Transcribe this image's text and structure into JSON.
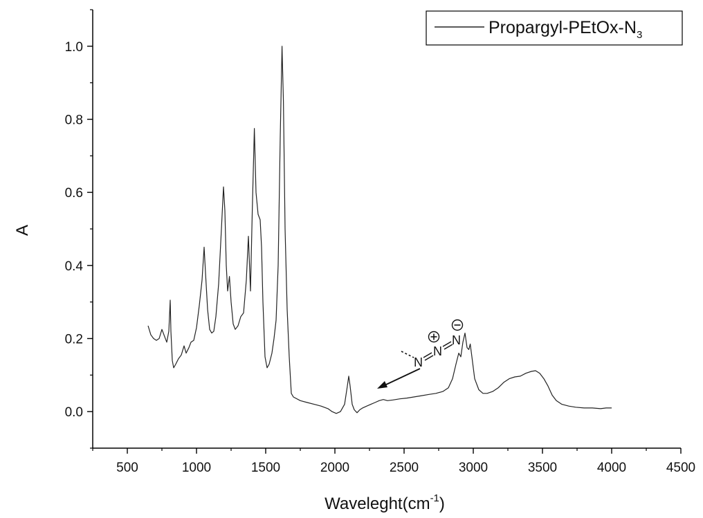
{
  "chart_data": {
    "type": "line",
    "title": "",
    "xlabel": "Waveleght(cm",
    "xlabel_sup": "-1",
    "xlabel_end": ")",
    "ylabel": "A",
    "xlim": [
      250,
      4500
    ],
    "ylim": [
      -0.1,
      1.1
    ],
    "xticks": [
      500,
      1000,
      1500,
      2000,
      2500,
      3000,
      3500,
      4000,
      4500
    ],
    "xtick_labels": [
      "500",
      "1000",
      "1500",
      "2000",
      "2500",
      "3000",
      "3500",
      "4000",
      "4500"
    ],
    "yticks": [
      0.0,
      0.2,
      0.4,
      0.6,
      0.8,
      1.0
    ],
    "ytick_labels": [
      "0.0",
      "0.2",
      "0.4",
      "0.6",
      "0.8",
      "1.0"
    ],
    "grid": false,
    "legend_position": "top-right",
    "series": [
      {
        "name": "Propargyl-PEtOx-N",
        "name_sub": "3",
        "color": "#222222",
        "points": [
          [
            650,
            0.235
          ],
          [
            670,
            0.21
          ],
          [
            690,
            0.2
          ],
          [
            710,
            0.195
          ],
          [
            730,
            0.2
          ],
          [
            750,
            0.225
          ],
          [
            770,
            0.205
          ],
          [
            785,
            0.19
          ],
          [
            800,
            0.22
          ],
          [
            810,
            0.305
          ],
          [
            815,
            0.22
          ],
          [
            825,
            0.14
          ],
          [
            835,
            0.12
          ],
          [
            850,
            0.13
          ],
          [
            870,
            0.145
          ],
          [
            890,
            0.155
          ],
          [
            910,
            0.18
          ],
          [
            925,
            0.16
          ],
          [
            945,
            0.175
          ],
          [
            960,
            0.19
          ],
          [
            980,
            0.195
          ],
          [
            1000,
            0.23
          ],
          [
            1020,
            0.29
          ],
          [
            1040,
            0.36
          ],
          [
            1055,
            0.45
          ],
          [
            1065,
            0.38
          ],
          [
            1080,
            0.28
          ],
          [
            1095,
            0.225
          ],
          [
            1110,
            0.215
          ],
          [
            1125,
            0.22
          ],
          [
            1140,
            0.26
          ],
          [
            1160,
            0.35
          ],
          [
            1180,
            0.5
          ],
          [
            1195,
            0.615
          ],
          [
            1205,
            0.55
          ],
          [
            1215,
            0.4
          ],
          [
            1225,
            0.33
          ],
          [
            1238,
            0.37
          ],
          [
            1250,
            0.3
          ],
          [
            1265,
            0.24
          ],
          [
            1280,
            0.225
          ],
          [
            1300,
            0.235
          ],
          [
            1320,
            0.26
          ],
          [
            1340,
            0.27
          ],
          [
            1360,
            0.36
          ],
          [
            1375,
            0.48
          ],
          [
            1390,
            0.33
          ],
          [
            1403,
            0.55
          ],
          [
            1418,
            0.775
          ],
          [
            1430,
            0.6
          ],
          [
            1445,
            0.54
          ],
          [
            1460,
            0.525
          ],
          [
            1470,
            0.45
          ],
          [
            1480,
            0.3
          ],
          [
            1495,
            0.15
          ],
          [
            1510,
            0.12
          ],
          [
            1525,
            0.13
          ],
          [
            1545,
            0.16
          ],
          [
            1560,
            0.2
          ],
          [
            1575,
            0.25
          ],
          [
            1590,
            0.4
          ],
          [
            1605,
            0.75
          ],
          [
            1618,
            1.0
          ],
          [
            1628,
            0.85
          ],
          [
            1640,
            0.5
          ],
          [
            1655,
            0.28
          ],
          [
            1670,
            0.15
          ],
          [
            1685,
            0.05
          ],
          [
            1700,
            0.04
          ],
          [
            1750,
            0.03
          ],
          [
            1800,
            0.025
          ],
          [
            1850,
            0.02
          ],
          [
            1900,
            0.015
          ],
          [
            1950,
            0.008
          ],
          [
            1980,
            0.0
          ],
          [
            2010,
            -0.005
          ],
          [
            2040,
            0.0
          ],
          [
            2070,
            0.02
          ],
          [
            2090,
            0.07
          ],
          [
            2100,
            0.097
          ],
          [
            2110,
            0.07
          ],
          [
            2125,
            0.02
          ],
          [
            2140,
            0.005
          ],
          [
            2160,
            -0.003
          ],
          [
            2180,
            0.005
          ],
          [
            2200,
            0.01
          ],
          [
            2230,
            0.015
          ],
          [
            2260,
            0.02
          ],
          [
            2290,
            0.025
          ],
          [
            2320,
            0.03
          ],
          [
            2350,
            0.033
          ],
          [
            2380,
            0.03
          ],
          [
            2420,
            0.032
          ],
          [
            2470,
            0.035
          ],
          [
            2520,
            0.037
          ],
          [
            2570,
            0.04
          ],
          [
            2620,
            0.043
          ],
          [
            2680,
            0.047
          ],
          [
            2730,
            0.05
          ],
          [
            2780,
            0.055
          ],
          [
            2820,
            0.065
          ],
          [
            2850,
            0.09
          ],
          [
            2875,
            0.13
          ],
          [
            2895,
            0.16
          ],
          [
            2910,
            0.15
          ],
          [
            2925,
            0.19
          ],
          [
            2940,
            0.215
          ],
          [
            2955,
            0.175
          ],
          [
            2968,
            0.17
          ],
          [
            2978,
            0.185
          ],
          [
            2990,
            0.15
          ],
          [
            3010,
            0.09
          ],
          [
            3040,
            0.06
          ],
          [
            3070,
            0.05
          ],
          [
            3100,
            0.05
          ],
          [
            3140,
            0.055
          ],
          [
            3180,
            0.065
          ],
          [
            3220,
            0.08
          ],
          [
            3260,
            0.09
          ],
          [
            3300,
            0.095
          ],
          [
            3340,
            0.097
          ],
          [
            3380,
            0.105
          ],
          [
            3420,
            0.11
          ],
          [
            3450,
            0.112
          ],
          [
            3480,
            0.105
          ],
          [
            3510,
            0.09
          ],
          [
            3540,
            0.07
          ],
          [
            3570,
            0.045
          ],
          [
            3600,
            0.03
          ],
          [
            3640,
            0.02
          ],
          [
            3690,
            0.015
          ],
          [
            3740,
            0.012
          ],
          [
            3800,
            0.01
          ],
          [
            3860,
            0.01
          ],
          [
            3920,
            0.008
          ],
          [
            3960,
            0.01
          ],
          [
            4000,
            0.01
          ]
        ]
      }
    ],
    "annotations": [
      {
        "type": "arrow",
        "from": [
          2620,
          0.135
        ],
        "to": [
          2300,
          0.065
        ]
      },
      {
        "type": "label",
        "text": "N=N=N",
        "at": [
          2600,
          0.135
        ],
        "charges": [
          "+",
          "−"
        ]
      }
    ]
  }
}
